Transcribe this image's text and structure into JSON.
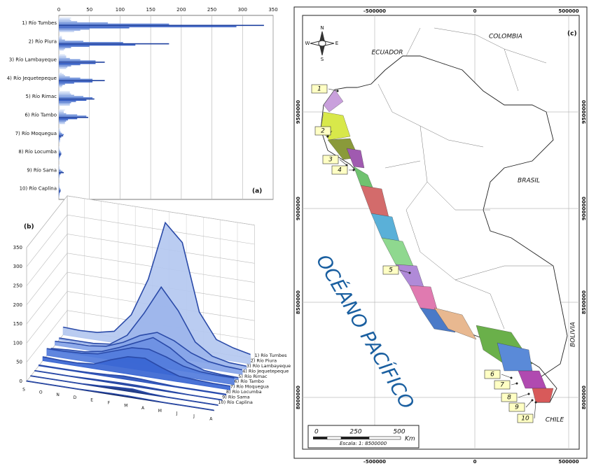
{
  "chart_data": [
    {
      "type": "hbar-groups",
      "label": "(a)",
      "categories": [
        "1) Río Tumbes",
        "2) Río Piura",
        "3) Río Lambayeque",
        "4) Río Jequetepeque",
        "5) Río Rimac",
        "6) Río Tambo",
        "7) Río Moquegua",
        "8) Río Locumba",
        "9) Río Sama",
        "10) Río Caplina"
      ],
      "values": [
        [
          20,
          18,
          20,
          30,
          80,
          180,
          335,
          290,
          115,
          50,
          35,
          25
        ],
        [
          5,
          5,
          5,
          10,
          40,
          105,
          180,
          125,
          50,
          20,
          10,
          8
        ],
        [
          10,
          12,
          12,
          18,
          35,
          60,
          75,
          60,
          35,
          20,
          14,
          12
        ],
        [
          5,
          8,
          10,
          18,
          35,
          55,
          75,
          55,
          25,
          10,
          6,
          5
        ],
        [
          18,
          18,
          20,
          25,
          40,
          55,
          58,
          45,
          28,
          20,
          18,
          18
        ],
        [
          10,
          8,
          8,
          12,
          30,
          45,
          48,
          30,
          15,
          12,
          10,
          10
        ],
        [
          2,
          2,
          2,
          3,
          5,
          8,
          7,
          4,
          2,
          2,
          2,
          2
        ],
        [
          1,
          1,
          1,
          2,
          3,
          4,
          4,
          3,
          2,
          1,
          1,
          1
        ],
        [
          1,
          1,
          1,
          1,
          3,
          6,
          8,
          3,
          1,
          1,
          1,
          1
        ],
        [
          1,
          1,
          1,
          1,
          2,
          3,
          3,
          2,
          1,
          1,
          1,
          1
        ]
      ],
      "colors": [
        "#dbe5f7",
        "#c6d5f2",
        "#aec3ec",
        "#93aee4",
        "#7898dc",
        "#5a7fd2",
        "#1d3f9e",
        "#2c56c0",
        "#4a70cc",
        "#6e8fd8",
        "#9fb6e8",
        "#c2d2f1"
      ],
      "xlim": [
        0,
        350
      ],
      "xticks": [
        0,
        50,
        100,
        150,
        200,
        250,
        300,
        350
      ],
      "grid": true
    },
    {
      "type": "area3d",
      "label": "(b)",
      "x": [
        "S",
        "O",
        "N",
        "D",
        "E",
        "F",
        "M",
        "A",
        "M",
        "J",
        "J",
        "A"
      ],
      "series": [
        {
          "name": "1) Río Tumbes",
          "color": "#b4c8f0",
          "values": [
            20,
            18,
            20,
            30,
            80,
            180,
            335,
            290,
            115,
            50,
            35,
            25
          ]
        },
        {
          "name": "2) Río Piura",
          "color": "#9cb5ec",
          "values": [
            5,
            5,
            5,
            10,
            40,
            105,
            180,
            125,
            50,
            20,
            10,
            8
          ]
        },
        {
          "name": "3) Río Lambayeque",
          "color": "#86a4e8",
          "values": [
            10,
            12,
            12,
            18,
            35,
            60,
            75,
            60,
            35,
            20,
            14,
            12
          ]
        },
        {
          "name": "4) Río Jequetepeque",
          "color": "#6c90e2",
          "values": [
            5,
            8,
            10,
            18,
            35,
            55,
            75,
            55,
            25,
            10,
            6,
            5
          ]
        },
        {
          "name": "5) Río Rimac",
          "color": "#527cdc",
          "values": [
            18,
            18,
            20,
            25,
            40,
            55,
            58,
            45,
            28,
            20,
            18,
            18
          ]
        },
        {
          "name": "6) Río Tambo",
          "color": "#3a66d2",
          "values": [
            10,
            8,
            8,
            12,
            30,
            45,
            48,
            30,
            15,
            12,
            10,
            10
          ]
        },
        {
          "name": "7) Río Moquegua",
          "color": "#2a52bc",
          "values": [
            2,
            2,
            2,
            3,
            5,
            8,
            7,
            4,
            2,
            2,
            2,
            2
          ]
        },
        {
          "name": "8) Río Locumba",
          "color": "#1e409e",
          "values": [
            1,
            1,
            1,
            2,
            3,
            4,
            4,
            3,
            2,
            1,
            1,
            1
          ]
        },
        {
          "name": "9) Río Sama",
          "color": "#143080",
          "values": [
            1,
            1,
            1,
            1,
            3,
            6,
            8,
            3,
            1,
            1,
            1,
            1
          ]
        },
        {
          "name": "10) Río Caplina",
          "color": "#0b1f5c",
          "values": [
            1,
            1,
            1,
            1,
            2,
            3,
            3,
            2,
            1,
            1,
            1,
            1
          ]
        }
      ],
      "ylim": [
        0,
        350
      ],
      "yticks": [
        0,
        50,
        100,
        150,
        200,
        250,
        300,
        350
      ],
      "grid": true
    }
  ],
  "map": {
    "label": "(c)",
    "countries": [
      "COLOMBIA",
      "ECUADOR",
      "BRASIL",
      "BOLIVIA",
      "CHILE"
    ],
    "ocean": "OCÉANO PACÍFICO",
    "x_labels": [
      "-500000",
      "0",
      "500000"
    ],
    "y_labels": [
      "9500000",
      "9000000",
      "8500000",
      "8000000"
    ],
    "compass": [
      "N",
      "S",
      "E",
      "W"
    ],
    "markers": [
      "1",
      "2",
      "3",
      "4",
      "5",
      "6",
      "7",
      "8",
      "9",
      "10"
    ],
    "scale": {
      "ticks": [
        "0",
        "250",
        "500"
      ],
      "unit": "Km",
      "text": "Escala: 1: 8500000"
    }
  }
}
